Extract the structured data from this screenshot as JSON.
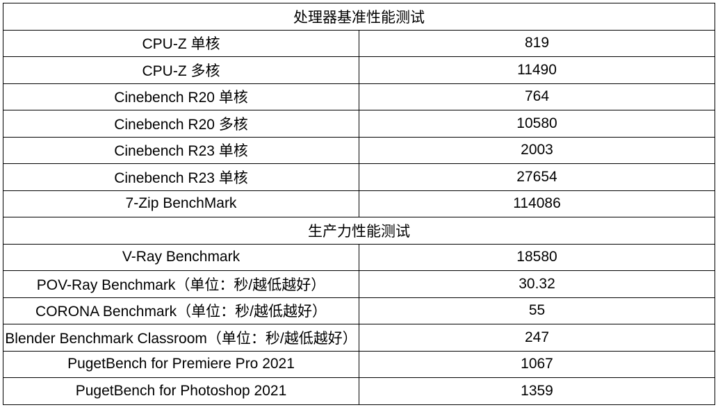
{
  "table": {
    "sections": [
      {
        "title": "处理器基准性能测试",
        "rows": [
          [
            "CPU-Z 单核",
            "819"
          ],
          [
            "CPU-Z 多核",
            "11490"
          ],
          [
            "Cinebench R20 单核",
            "764"
          ],
          [
            "Cinebench R20 多核",
            "10580"
          ],
          [
            "Cinebench R23 单核",
            "2003"
          ],
          [
            "Cinebench R23 单核",
            "27654"
          ],
          [
            "7-Zip BenchMark",
            "114086"
          ]
        ]
      },
      {
        "title": "生产力性能测试",
        "rows": [
          [
            "V-Ray Benchmark",
            "18580"
          ],
          [
            "POV-Ray Benchmark（单位：秒/越低越好）",
            "30.32"
          ],
          [
            "CORONA Benchmark（单位：秒/越低越好）",
            "55"
          ],
          [
            "Blender Benchmark Classroom（单位：秒/越低越好）",
            "247"
          ],
          [
            "PugetBench for Premiere Pro 2021",
            "1067"
          ],
          [
            "PugetBench for Photoshop 2021",
            "1359"
          ]
        ]
      }
    ]
  }
}
